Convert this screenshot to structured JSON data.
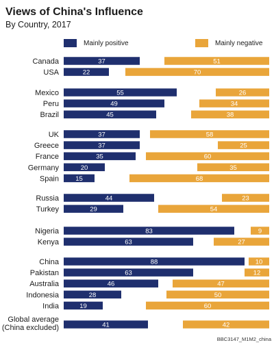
{
  "header": {
    "title": "Views of China's Influence",
    "subtitle": "By Country, 2017"
  },
  "credit": "BBC3147_M1M2_china",
  "chart_data": {
    "type": "bar",
    "orientation": "horizontal",
    "stacked": false,
    "title": "Views of China's Influence",
    "subtitle": "By Country, 2017",
    "colors": {
      "positive": "#1f2f6e",
      "negative": "#e9a53a"
    },
    "legend": {
      "placement": "top",
      "entries": [
        "Mainly positive",
        "Mainly negative"
      ]
    },
    "groups": [
      {
        "rows": [
          {
            "country": "Canada",
            "positive": 37,
            "negative": 51
          },
          {
            "country": "USA",
            "positive": 22,
            "negative": 70
          }
        ]
      },
      {
        "rows": [
          {
            "country": "Mexico",
            "positive": 55,
            "negative": 26
          },
          {
            "country": "Peru",
            "positive": 49,
            "negative": 34
          },
          {
            "country": "Brazil",
            "positive": 45,
            "negative": 38
          }
        ]
      },
      {
        "rows": [
          {
            "country": "UK",
            "positive": 37,
            "negative": 58
          },
          {
            "country": "Greece",
            "positive": 37,
            "negative": 25
          },
          {
            "country": "France",
            "positive": 35,
            "negative": 60
          },
          {
            "country": "Germany",
            "positive": 20,
            "negative": 35
          },
          {
            "country": "Spain",
            "positive": 15,
            "negative": 68
          }
        ]
      },
      {
        "rows": [
          {
            "country": "Russia",
            "positive": 44,
            "negative": 23
          },
          {
            "country": "Turkey",
            "positive": 29,
            "negative": 54
          }
        ]
      },
      {
        "rows": [
          {
            "country": "Nigeria",
            "positive": 83,
            "negative": 9
          },
          {
            "country": "Kenya",
            "positive": 63,
            "negative": 27
          }
        ]
      },
      {
        "rows": [
          {
            "country": "China",
            "positive": 88,
            "negative": 10
          },
          {
            "country": "Pakistan",
            "positive": 63,
            "negative": 12
          },
          {
            "country": "Australia",
            "positive": 46,
            "negative": 47
          },
          {
            "country": "Indonesia",
            "positive": 28,
            "negative": 50
          },
          {
            "country": "India",
            "positive": 19,
            "negative": 60
          }
        ]
      },
      {
        "rows": [
          {
            "country": [
              "Global average",
              "(China excluded)"
            ],
            "positive": 41,
            "negative": 42
          }
        ]
      }
    ]
  }
}
